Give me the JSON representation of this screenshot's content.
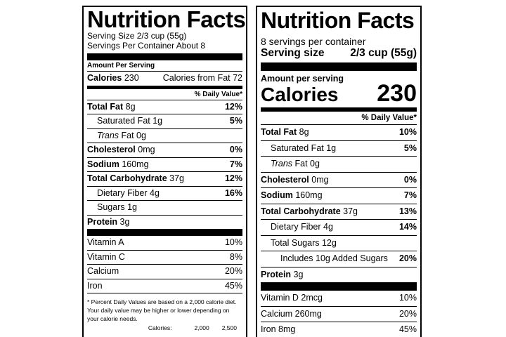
{
  "old_label": {
    "title": "Nutrition Facts",
    "serving_size": "Serving Size 2/3 cup (55g)",
    "servings_per_container": "Servings Per Container About 8",
    "amount_per_serving": "Amount Per Serving",
    "calories_label": "Calories",
    "calories_value": "230",
    "calories_from_fat": "Calories from Fat 72",
    "dv_header": "% Daily Value*",
    "nutrients": [
      {
        "name": "Total Fat",
        "amount": "8g",
        "dv": "12%"
      },
      {
        "name": "Saturated Fat",
        "amount": "1g",
        "dv": "5%"
      },
      {
        "name": "Trans",
        "amount": "Fat 0g",
        "dv": ""
      },
      {
        "name": "Cholesterol",
        "amount": "0mg",
        "dv": "0%"
      },
      {
        "name": "Sodium",
        "amount": "160mg",
        "dv": "7%"
      },
      {
        "name": "Total Carbohydrate",
        "amount": "37g",
        "dv": "12%"
      },
      {
        "name": "Dietary Fiber",
        "amount": "4g",
        "dv": "16%"
      },
      {
        "name": "Sugars",
        "amount": "1g",
        "dv": ""
      },
      {
        "name": "Protein",
        "amount": "3g",
        "dv": ""
      }
    ],
    "vitamins": [
      {
        "name": "Vitamin A",
        "dv": "10%"
      },
      {
        "name": "Vitamin C",
        "dv": "8%"
      },
      {
        "name": "Calcium",
        "dv": "20%"
      },
      {
        "name": "Iron",
        "dv": "45%"
      }
    ],
    "footnote": "* Percent Daily Values are based on a 2,000 calorie diet. Your daily value may be higher or lower depending on your calorie needs.",
    "footer_table": {
      "label": "Calories:",
      "col1": "2,000",
      "col2": "2,500"
    }
  },
  "new_label": {
    "title": "Nutrition Facts",
    "servings_per_container": "8 servings per container",
    "serving_size_label": "Serving size",
    "serving_size_value": "2/3 cup (55g)",
    "amount_per_serving": "Amount per serving",
    "calories_label": "Calories",
    "calories_value": "230",
    "dv_header": "% Daily Value*",
    "nutrients": [
      {
        "name": "Total Fat",
        "amount": "8g",
        "dv": "10%"
      },
      {
        "name": "Saturated Fat",
        "amount": "1g",
        "dv": "5%"
      },
      {
        "name": "Trans",
        "amount": "Fat 0g",
        "dv": ""
      },
      {
        "name": "Cholesterol",
        "amount": "0mg",
        "dv": "0%"
      },
      {
        "name": "Sodium",
        "amount": "160mg",
        "dv": "7%"
      },
      {
        "name": "Total Carbohydrate",
        "amount": "37g",
        "dv": "13%"
      },
      {
        "name": "Dietary Fiber",
        "amount": "4g",
        "dv": "14%"
      },
      {
        "name": "Total Sugars",
        "amount": "12g",
        "dv": ""
      },
      {
        "name": "Includes 10g Added Sugars",
        "amount": "",
        "dv": "20%"
      },
      {
        "name": "Protein",
        "amount": "3g",
        "dv": ""
      }
    ],
    "vitamins": [
      {
        "name": "Vitamin D 2mcg",
        "dv": "10%"
      },
      {
        "name": "Calcium 260mg",
        "dv": "20%"
      },
      {
        "name": "Iron 8mg",
        "dv": "45%"
      }
    ]
  }
}
